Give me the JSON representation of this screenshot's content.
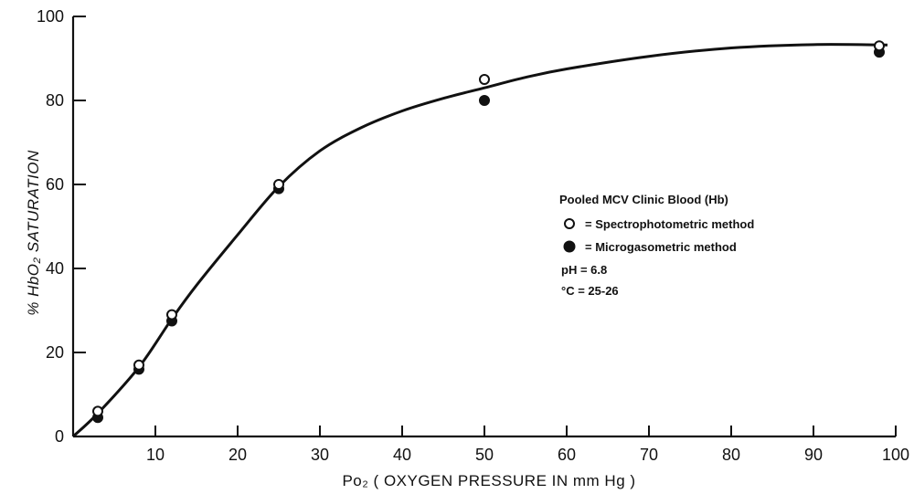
{
  "chart_data": {
    "type": "scatter",
    "title": "",
    "xlabel": "Po₂ ( OXYGEN PRESSURE IN mm Hg )",
    "ylabel": "% HbO₂ SATURATION",
    "xlim": [
      0,
      100
    ],
    "ylim": [
      0,
      100
    ],
    "x_ticks": [
      10,
      20,
      30,
      40,
      50,
      60,
      70,
      80,
      90,
      100
    ],
    "x_tick_labels": [
      "10",
      "20",
      "30",
      "40",
      "50",
      "60",
      "70",
      "80",
      "90",
      "100"
    ],
    "y_ticks": [
      0,
      20,
      40,
      60,
      80,
      100
    ],
    "y_tick_labels": [
      "0",
      "20",
      "40",
      "60",
      "80",
      "100"
    ],
    "grid": false,
    "legend": {
      "placement": "right",
      "title": "Pooled MCV Clinic Blood (Hb)",
      "entries": [
        {
          "marker": "open-circle",
          "label": "= Spectrophotometric method"
        },
        {
          "marker": "filled-circle",
          "label": "= Microgasometric method"
        }
      ],
      "notes": [
        "pH = 6.8",
        "°C = 25-26"
      ]
    },
    "series": [
      {
        "marker": "open-circle",
        "x": [
          3,
          8,
          12,
          25,
          50,
          98
        ],
        "y": [
          6,
          17,
          29,
          60,
          85,
          93
        ]
      },
      {
        "marker": "filled-circle",
        "x": [
          3,
          8,
          12,
          25,
          50,
          98
        ],
        "y": [
          4.5,
          16,
          27.5,
          59,
          80,
          91.5
        ]
      }
    ],
    "curve": {
      "x": [
        0,
        3,
        8,
        12,
        15,
        20,
        25,
        30,
        35,
        40,
        45,
        50,
        55,
        60,
        70,
        80,
        90,
        99
      ],
      "y": [
        0,
        5.5,
        16.5,
        28,
        36,
        48,
        59.5,
        68,
        73.5,
        77.5,
        80.5,
        83,
        85.5,
        87.5,
        90.5,
        92.5,
        93.3,
        93.2
      ]
    }
  }
}
